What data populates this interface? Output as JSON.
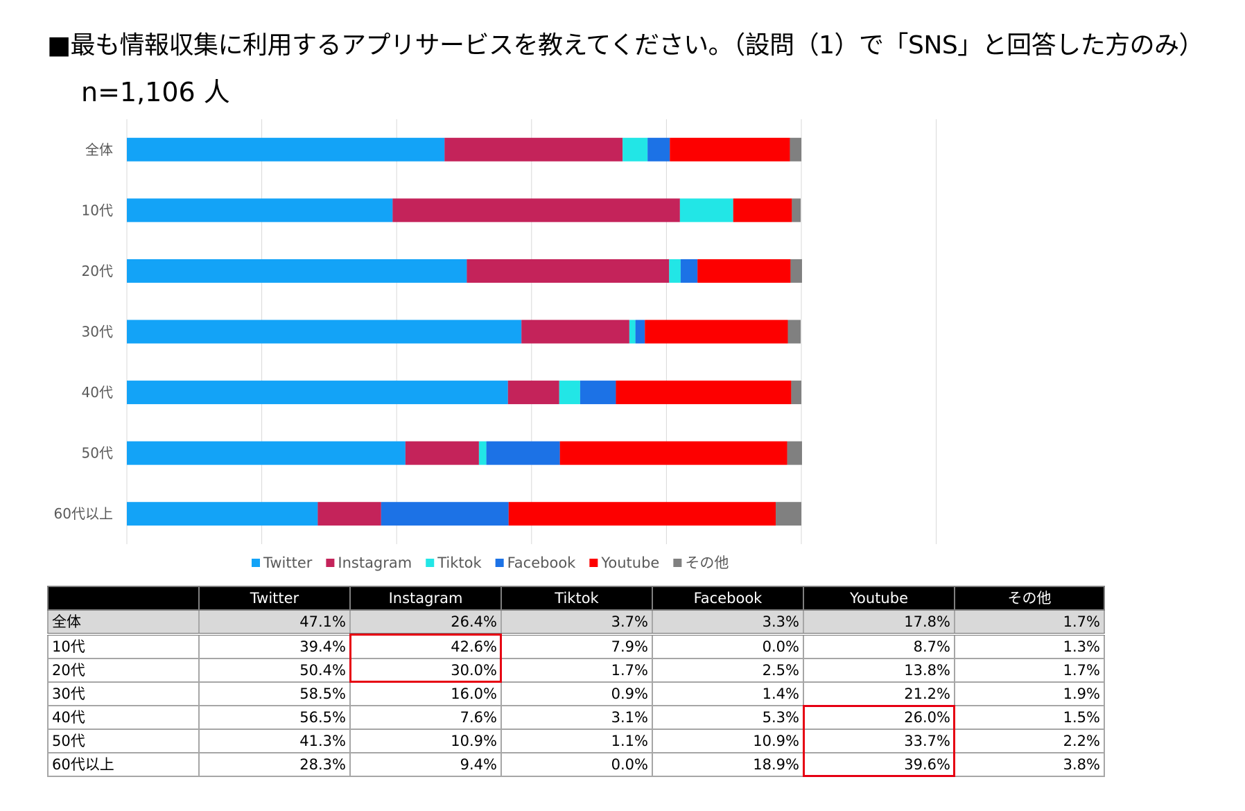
{
  "title": "■最も情報収集に利用するアプリサービスを教えてください。（設問（1）で「SNS」と回答した方のみ）",
  "sample_size": "n=1,106 人",
  "chart_data": {
    "type": "bar",
    "orientation": "horizontal",
    "stacked": true,
    "title": "",
    "xlabel": "",
    "ylabel": "",
    "xlim": [
      0,
      120
    ],
    "grid": true,
    "legend_position": "bottom",
    "categories": [
      "全体",
      "10代",
      "20代",
      "30代",
      "40代",
      "50代",
      "60代以上"
    ],
    "series": [
      {
        "name": "Twitter",
        "color": "#13a3f7",
        "values": [
          47.1,
          39.4,
          50.4,
          58.5,
          56.5,
          41.3,
          28.3
        ]
      },
      {
        "name": "Instagram",
        "color": "#c4235a",
        "values": [
          26.4,
          42.6,
          30.0,
          16.0,
          7.6,
          10.9,
          9.4
        ]
      },
      {
        "name": "Tiktok",
        "color": "#22e6e6",
        "values": [
          3.7,
          7.9,
          1.7,
          0.9,
          3.1,
          1.1,
          0.0
        ]
      },
      {
        "name": "Facebook",
        "color": "#1c72e6",
        "values": [
          3.3,
          0.0,
          2.5,
          1.4,
          5.3,
          10.9,
          18.9
        ]
      },
      {
        "name": "Youtube",
        "color": "#fd0000",
        "values": [
          17.8,
          8.7,
          13.8,
          21.2,
          26.0,
          33.7,
          39.6
        ]
      },
      {
        "name": "その他",
        "color": "#808080",
        "values": [
          1.7,
          1.3,
          1.7,
          1.9,
          1.5,
          2.2,
          3.8
        ]
      }
    ]
  },
  "table": {
    "headers": [
      "",
      "Twitter",
      "Instagram",
      "Tiktok",
      "Facebook",
      "Youtube",
      "その他"
    ],
    "rows": [
      {
        "label": "全体",
        "cells": [
          "47.1%",
          "26.4%",
          "3.7%",
          "3.3%",
          "17.8%",
          "1.7%"
        ]
      },
      {
        "label": "10代",
        "cells": [
          "39.4%",
          "42.6%",
          "7.9%",
          "0.0%",
          "8.7%",
          "1.3%"
        ]
      },
      {
        "label": "20代",
        "cells": [
          "50.4%",
          "30.0%",
          "1.7%",
          "2.5%",
          "13.8%",
          "1.7%"
        ]
      },
      {
        "label": "30代",
        "cells": [
          "58.5%",
          "16.0%",
          "0.9%",
          "1.4%",
          "21.2%",
          "1.9%"
        ]
      },
      {
        "label": "40代",
        "cells": [
          "56.5%",
          "7.6%",
          "3.1%",
          "5.3%",
          "26.0%",
          "1.5%"
        ]
      },
      {
        "label": "50代",
        "cells": [
          "41.3%",
          "10.9%",
          "1.1%",
          "10.9%",
          "33.7%",
          "2.2%"
        ]
      },
      {
        "label": "60代以上",
        "cells": [
          "28.3%",
          "9.4%",
          "0.0%",
          "18.9%",
          "39.6%",
          "3.8%"
        ]
      }
    ],
    "highlights": [
      {
        "column": "Instagram",
        "rows": [
          "10代",
          "20代"
        ],
        "color": "#e60012"
      },
      {
        "column": "Youtube",
        "rows": [
          "40代",
          "50代",
          "60代以上"
        ],
        "color": "#e60012"
      }
    ]
  }
}
